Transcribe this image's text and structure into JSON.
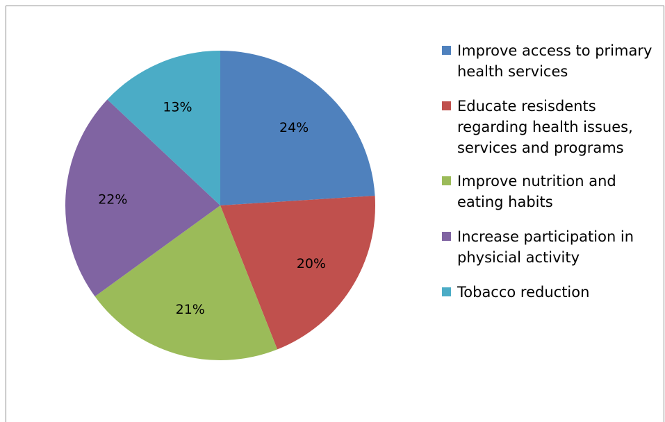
{
  "chart_data": {
    "type": "pie",
    "title": "",
    "slices": [
      {
        "label": "Improve access to primary health services",
        "value": 24,
        "value_label": "24%",
        "color": "#4F81BD"
      },
      {
        "label": "Educate resisdents regarding health issues, services and programs",
        "value": 20,
        "value_label": "20%",
        "color": "#C0504D"
      },
      {
        "label": "Improve nutrition and eating habits",
        "value": 21,
        "value_label": "21%",
        "color": "#9BBB59"
      },
      {
        "label": "Increase participation in physicial activity",
        "value": 22,
        "value_label": "22%",
        "color": "#8064A2"
      },
      {
        "label": "Tobacco reduction",
        "value": 13,
        "value_label": "13%",
        "color": "#4BACC6"
      }
    ],
    "start_angle_deg": 0,
    "direction": "clockwise",
    "legend_position": "right"
  }
}
